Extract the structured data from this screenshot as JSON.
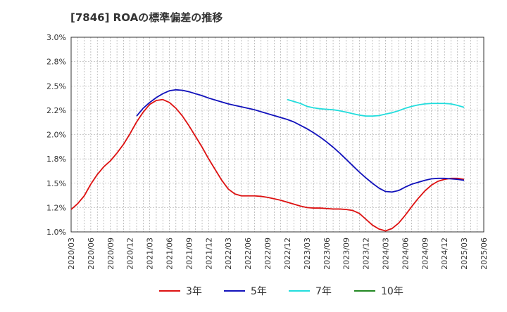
{
  "chart_data": {
    "type": "line",
    "title": "[7846]  ROAの標準偏差の推移",
    "xlabel": "",
    "ylabel": "",
    "ylim": [
      1.0,
      3.0
    ],
    "y_ticks": [
      1.0,
      1.25,
      1.5,
      1.75,
      2.0,
      2.25,
      2.5,
      2.75,
      3.0
    ],
    "y_tick_labels": [
      "1.0%",
      "1.2%",
      "1.5%",
      "1.8%",
      "2.0%",
      "2.2%",
      "2.5%",
      "2.8%",
      "3.0%"
    ],
    "x_tick_labels": [
      "2020/03",
      "2020/06",
      "2020/09",
      "2020/12",
      "2021/03",
      "2021/06",
      "2021/09",
      "2021/12",
      "2022/03",
      "2022/06",
      "2022/09",
      "2022/12",
      "2023/03",
      "2023/06",
      "2023/09",
      "2023/12",
      "2024/03",
      "2024/06",
      "2024/09",
      "2024/12",
      "2025/03",
      "2025/06"
    ],
    "grid": true,
    "legend_position": "bottom",
    "series": [
      {
        "name": "3年",
        "color": "#dd1111",
        "points": [
          [
            "2020/03",
            1.23
          ],
          [
            "2020/04",
            1.29
          ],
          [
            "2020/05",
            1.37
          ],
          [
            "2020/06",
            1.49
          ],
          [
            "2020/07",
            1.59
          ],
          [
            "2020/08",
            1.67
          ],
          [
            "2020/09",
            1.73
          ],
          [
            "2020/10",
            1.81
          ],
          [
            "2020/11",
            1.9
          ],
          [
            "2020/12",
            2.01
          ],
          [
            "2021/01",
            2.13
          ],
          [
            "2021/02",
            2.23
          ],
          [
            "2021/03",
            2.31
          ],
          [
            "2021/04",
            2.35
          ],
          [
            "2021/05",
            2.36
          ],
          [
            "2021/06",
            2.33
          ],
          [
            "2021/07",
            2.27
          ],
          [
            "2021/08",
            2.19
          ],
          [
            "2021/09",
            2.09
          ],
          [
            "2021/10",
            1.98
          ],
          [
            "2021/11",
            1.87
          ],
          [
            "2021/12",
            1.75
          ],
          [
            "2022/01",
            1.64
          ],
          [
            "2022/02",
            1.53
          ],
          [
            "2022/03",
            1.44
          ],
          [
            "2022/04",
            1.39
          ],
          [
            "2022/05",
            1.37
          ],
          [
            "2022/06",
            1.37
          ],
          [
            "2022/07",
            1.37
          ],
          [
            "2022/08",
            1.365
          ],
          [
            "2022/09",
            1.355
          ],
          [
            "2022/10",
            1.34
          ],
          [
            "2022/11",
            1.325
          ],
          [
            "2022/12",
            1.305
          ],
          [
            "2023/01",
            1.285
          ],
          [
            "2023/02",
            1.265
          ],
          [
            "2023/03",
            1.25
          ],
          [
            "2023/04",
            1.245
          ],
          [
            "2023/05",
            1.245
          ],
          [
            "2023/06",
            1.24
          ],
          [
            "2023/07",
            1.235
          ],
          [
            "2023/08",
            1.235
          ],
          [
            "2023/09",
            1.23
          ],
          [
            "2023/10",
            1.22
          ],
          [
            "2023/11",
            1.19
          ],
          [
            "2023/12",
            1.13
          ],
          [
            "2024/01",
            1.07
          ],
          [
            "2024/02",
            1.03
          ],
          [
            "2024/03",
            1.01
          ],
          [
            "2024/04",
            1.035
          ],
          [
            "2024/05",
            1.09
          ],
          [
            "2024/06",
            1.17
          ],
          [
            "2024/07",
            1.26
          ],
          [
            "2024/08",
            1.345
          ],
          [
            "2024/09",
            1.42
          ],
          [
            "2024/10",
            1.48
          ],
          [
            "2024/11",
            1.52
          ],
          [
            "2024/12",
            1.54
          ],
          [
            "2025/01",
            1.55
          ],
          [
            "2025/02",
            1.55
          ],
          [
            "2025/03",
            1.54
          ]
        ]
      },
      {
        "name": "5年",
        "color": "#1111bb",
        "points": [
          [
            "2021/01",
            2.19
          ],
          [
            "2021/02",
            2.27
          ],
          [
            "2021/03",
            2.33
          ],
          [
            "2021/04",
            2.38
          ],
          [
            "2021/05",
            2.42
          ],
          [
            "2021/06",
            2.45
          ],
          [
            "2021/07",
            2.46
          ],
          [
            "2021/08",
            2.455
          ],
          [
            "2021/09",
            2.44
          ],
          [
            "2021/10",
            2.42
          ],
          [
            "2021/11",
            2.4
          ],
          [
            "2021/12",
            2.375
          ],
          [
            "2022/01",
            2.355
          ],
          [
            "2022/02",
            2.335
          ],
          [
            "2022/03",
            2.315
          ],
          [
            "2022/04",
            2.3
          ],
          [
            "2022/05",
            2.285
          ],
          [
            "2022/06",
            2.27
          ],
          [
            "2022/07",
            2.255
          ],
          [
            "2022/08",
            2.235
          ],
          [
            "2022/09",
            2.215
          ],
          [
            "2022/10",
            2.195
          ],
          [
            "2022/11",
            2.175
          ],
          [
            "2022/12",
            2.155
          ],
          [
            "2023/01",
            2.13
          ],
          [
            "2023/02",
            2.095
          ],
          [
            "2023/03",
            2.06
          ],
          [
            "2023/04",
            2.02
          ],
          [
            "2023/05",
            1.975
          ],
          [
            "2023/06",
            1.925
          ],
          [
            "2023/07",
            1.87
          ],
          [
            "2023/08",
            1.81
          ],
          [
            "2023/09",
            1.745
          ],
          [
            "2023/10",
            1.68
          ],
          [
            "2023/11",
            1.615
          ],
          [
            "2023/12",
            1.555
          ],
          [
            "2024/01",
            1.5
          ],
          [
            "2024/02",
            1.45
          ],
          [
            "2024/03",
            1.415
          ],
          [
            "2024/04",
            1.41
          ],
          [
            "2024/05",
            1.425
          ],
          [
            "2024/06",
            1.46
          ],
          [
            "2024/07",
            1.49
          ],
          [
            "2024/08",
            1.51
          ],
          [
            "2024/09",
            1.53
          ],
          [
            "2024/10",
            1.545
          ],
          [
            "2024/11",
            1.55
          ],
          [
            "2024/12",
            1.55
          ],
          [
            "2025/01",
            1.545
          ],
          [
            "2025/02",
            1.54
          ],
          [
            "2025/03",
            1.53
          ]
        ]
      },
      {
        "name": "7年",
        "color": "#22dddd",
        "points": [
          [
            "2022/12",
            2.36
          ],
          [
            "2023/01",
            2.34
          ],
          [
            "2023/02",
            2.32
          ],
          [
            "2023/03",
            2.29
          ],
          [
            "2023/04",
            2.275
          ],
          [
            "2023/05",
            2.265
          ],
          [
            "2023/06",
            2.26
          ],
          [
            "2023/07",
            2.255
          ],
          [
            "2023/08",
            2.245
          ],
          [
            "2023/09",
            2.23
          ],
          [
            "2023/10",
            2.215
          ],
          [
            "2023/11",
            2.2
          ],
          [
            "2023/12",
            2.19
          ],
          [
            "2024/01",
            2.19
          ],
          [
            "2024/02",
            2.195
          ],
          [
            "2024/03",
            2.21
          ],
          [
            "2024/04",
            2.225
          ],
          [
            "2024/05",
            2.245
          ],
          [
            "2024/06",
            2.27
          ],
          [
            "2024/07",
            2.29
          ],
          [
            "2024/08",
            2.305
          ],
          [
            "2024/09",
            2.315
          ],
          [
            "2024/10",
            2.32
          ],
          [
            "2024/11",
            2.32
          ],
          [
            "2024/12",
            2.32
          ],
          [
            "2025/01",
            2.315
          ],
          [
            "2025/02",
            2.3
          ],
          [
            "2025/03",
            2.28
          ]
        ]
      },
      {
        "name": "10年",
        "color": "#228822",
        "points": []
      }
    ]
  }
}
